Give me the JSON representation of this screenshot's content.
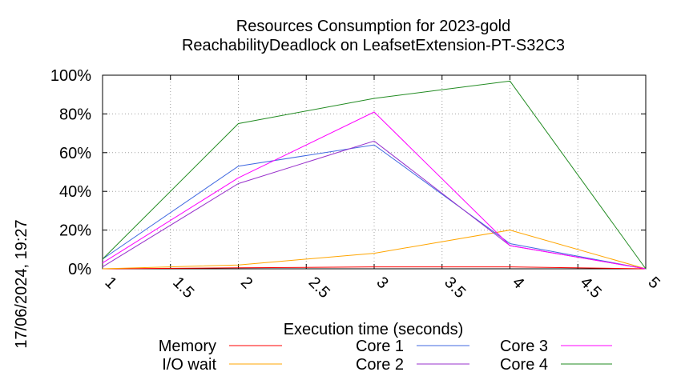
{
  "chart_data": {
    "type": "line",
    "title": "Resources Consumption for 2023-gold",
    "subtitle": "ReachabilityDeadlock on LeafsetExtension-PT-S32C3",
    "xlabel": "Execution time (seconds)",
    "ylabel": "",
    "timestamp": "17/06/2024, 19:27",
    "xlim": [
      1,
      5
    ],
    "ylim": [
      0,
      100
    ],
    "x_ticks": [
      "1",
      "1.5",
      "2",
      "2.5",
      "3",
      "3.5",
      "4",
      "4.5",
      "5"
    ],
    "y_ticks": [
      "0%",
      "20%",
      "40%",
      "60%",
      "80%",
      "100%"
    ],
    "grid": true,
    "legend_position": "bottom",
    "x": [
      1,
      2,
      3,
      4,
      5
    ],
    "series": [
      {
        "name": "Memory",
        "color": "#ff0000",
        "values": [
          0,
          0.5,
          1,
          1,
          0
        ]
      },
      {
        "name": "I/O wait",
        "color": "#ffa500",
        "values": [
          0,
          2,
          8,
          20,
          0
        ]
      },
      {
        "name": "Core 1",
        "color": "#4169e1",
        "values": [
          5,
          53,
          64,
          13,
          0
        ]
      },
      {
        "name": "Core 2",
        "color": "#9932cc",
        "values": [
          1,
          44,
          66,
          12,
          0
        ]
      },
      {
        "name": "Core 3",
        "color": "#ff00ff",
        "values": [
          3,
          47,
          81,
          12,
          0
        ]
      },
      {
        "name": "Core 4",
        "color": "#228b22",
        "values": [
          5,
          75,
          88,
          97,
          0
        ]
      }
    ]
  }
}
